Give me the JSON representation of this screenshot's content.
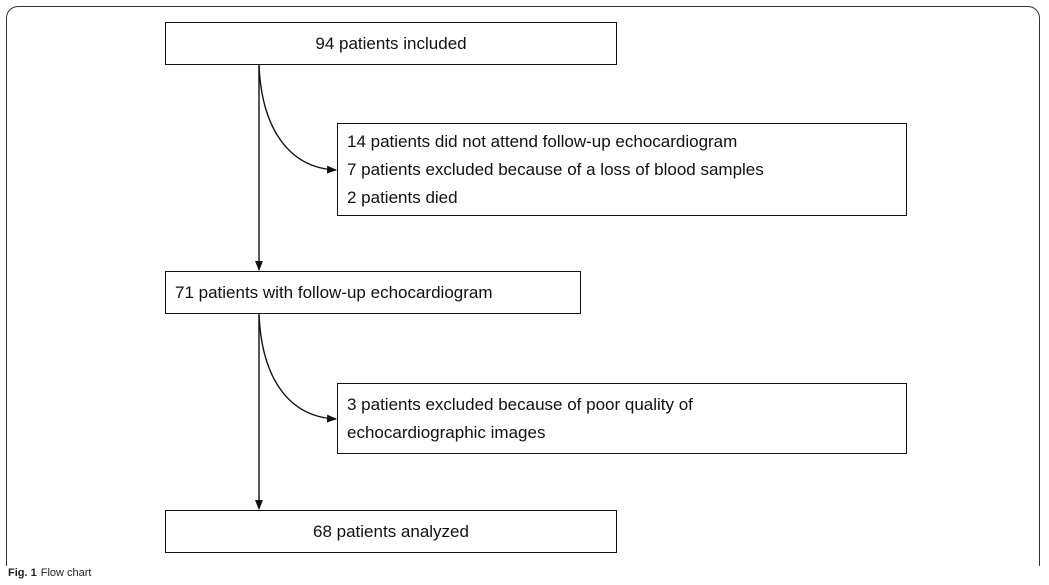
{
  "nodes": [
    {
      "lines": [
        "94 patients included"
      ]
    },
    {
      "lines": [
        "14 patients did not attend follow-up echocardiogram",
        "7 patients excluded because of a loss of blood samples",
        "2 patients died"
      ]
    },
    {
      "lines": [
        "71 patients with follow-up echocardiogram"
      ]
    },
    {
      "lines": [
        "3 patients excluded because of poor quality of",
        "echocardiographic images"
      ]
    },
    {
      "lines": [
        "68 patients analyzed"
      ]
    }
  ],
  "caption": {
    "label": "Fig. 1",
    "text": "Flow chart"
  }
}
